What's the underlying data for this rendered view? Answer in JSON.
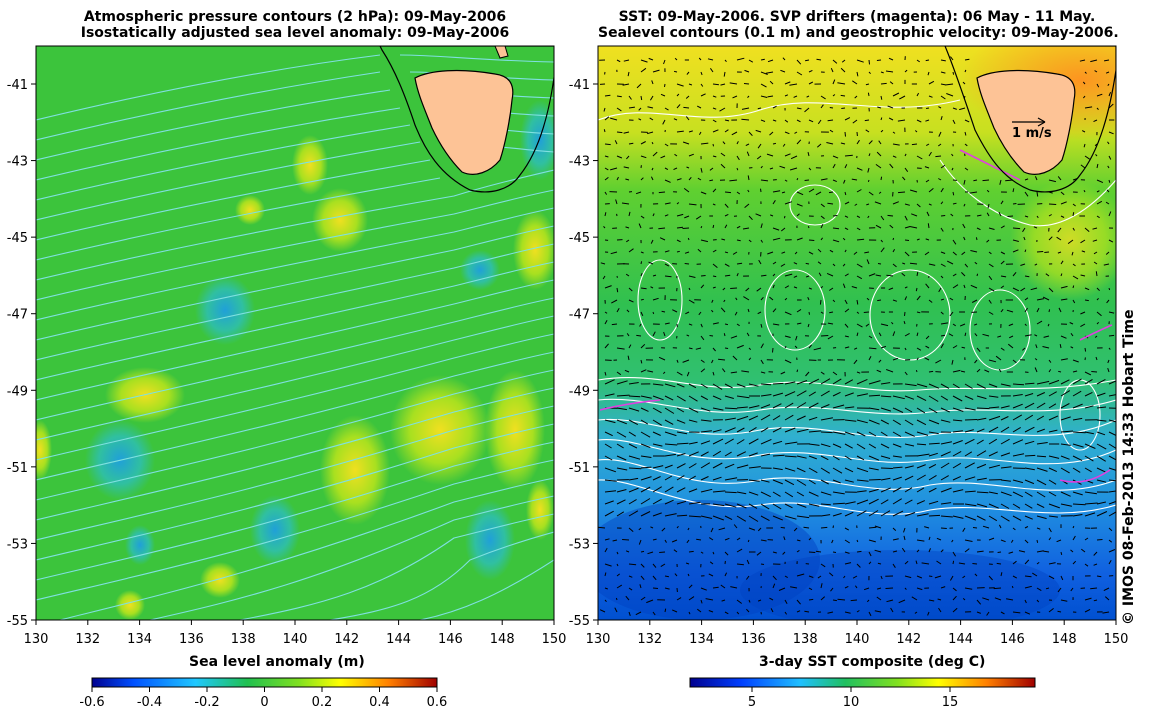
{
  "left_panel": {
    "title_line1": "Atmospheric pressure contours (2 hPa): 09-May-2006",
    "title_line2": "Isostatically adjusted sea level anomaly: 09-May-2006",
    "lon_ticks": [
      "130",
      "132",
      "134",
      "136",
      "138",
      "140",
      "142",
      "144",
      "146",
      "148",
      "150"
    ],
    "lat_ticks": [
      "-41",
      "-43",
      "-45",
      "-47",
      "-49",
      "-51",
      "-53",
      "-55"
    ],
    "colorbar_label": "Sea level anomaly (m)",
    "colorbar_ticks": [
      "-0.6",
      "-0.4",
      "-0.2",
      "0",
      "0.2",
      "0.4",
      "0.6"
    ],
    "colors": {
      "background": "#3cc43c",
      "contour": "#7fe0e0",
      "land": "#fdc396"
    }
  },
  "right_panel": {
    "title_line1": "SST: 09-May-2006. SVP drifters (magenta): 06 May - 11 May.",
    "title_line2": "Sealevel contours (0.1 m) and geostrophic velocity: 09-May-2006.",
    "lon_ticks": [
      "130",
      "132",
      "134",
      "136",
      "138",
      "140",
      "142",
      "144",
      "146",
      "148",
      "150"
    ],
    "lat_ticks": [
      "-41",
      "-43",
      "-45",
      "-47",
      "-49",
      "-51",
      "-53",
      "-55"
    ],
    "colorbar_label": "3-day SST composite (deg C)",
    "colorbar_ticks": [
      "5",
      "10",
      "15"
    ],
    "velocity_scale_label": "1 m/s",
    "colors": {
      "contour": "#ffffff",
      "drifter": "#e040e0",
      "land": "#fdc396"
    }
  },
  "credit": "© IMOS 08-Feb-2013 14:33 Hobart Time"
}
